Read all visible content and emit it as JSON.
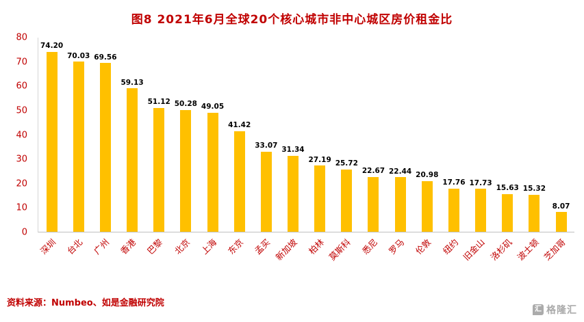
{
  "title": "图8  2021年6月全球20个核心城市非中心城区房价租金比",
  "source": "资料来源：Numbeo、如是金融研究院",
  "logo": {
    "icon_glyph": "汇",
    "text": "格隆汇"
  },
  "colors": {
    "bar": "#FFC000",
    "title": "#C00000",
    "axis_text": "#C00000",
    "value_label": "#000000",
    "source_text": "#C00000",
    "logo_gray": "#ABABAB"
  },
  "chart_data": {
    "type": "bar",
    "title": "图8  2021年6月全球20个核心城市非中心城区房价租金比",
    "categories": [
      "深圳",
      "台北",
      "广州",
      "香港",
      "巴黎",
      "北京",
      "上海",
      "东京",
      "孟买",
      "新加坡",
      "柏林",
      "莫斯科",
      "悉尼",
      "罗马",
      "伦敦",
      "纽约",
      "旧金山",
      "洛杉矶",
      "波士顿",
      "芝加哥"
    ],
    "values": [
      74.2,
      70.03,
      69.56,
      59.13,
      51.12,
      50.28,
      49.05,
      41.42,
      33.07,
      31.34,
      27.19,
      25.72,
      22.67,
      22.44,
      20.98,
      17.76,
      17.73,
      15.63,
      15.32,
      8.07
    ],
    "value_labels": [
      "74.20",
      "70.03",
      "69.56",
      "59.13",
      "51.12",
      "50.28",
      "49.05",
      "41.42",
      "33.07",
      "31.34",
      "27.19",
      "25.72",
      "22.67",
      "22.44",
      "20.98",
      "17.76",
      "17.73",
      "15.63",
      "15.32",
      "8.07"
    ],
    "xlabel": "",
    "ylabel": "",
    "ylim": [
      0,
      80
    ],
    "yticks": [
      0,
      10,
      20,
      30,
      40,
      50,
      60,
      70,
      80
    ],
    "grid": false,
    "legend": "none",
    "bar_color": "#FFC000"
  }
}
